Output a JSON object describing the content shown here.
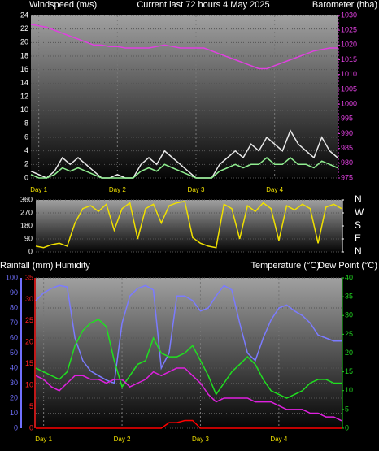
{
  "chart_data": [
    {
      "type": "line",
      "title": "Current last 72 hours 4 May 2025",
      "ylabel": "Windspeed (m/s)",
      "y2label": "Barometer (hba)",
      "categories": [
        null,
        "Day 1",
        null,
        null,
        null,
        null,
        null,
        null,
        null,
        null,
        null,
        "Day 2",
        null,
        null,
        null,
        null,
        null,
        null,
        null,
        null,
        null,
        "Day 3",
        null,
        null,
        null,
        null,
        null,
        null,
        null,
        null,
        null,
        "Day 4",
        null,
        null,
        null,
        null,
        null,
        null,
        null,
        null
      ],
      "ylim": [
        0,
        24
      ],
      "yticks": [
        0,
        2,
        4,
        6,
        8,
        10,
        12,
        14,
        16,
        18,
        20,
        22,
        24
      ],
      "ycolor": "#ffffff",
      "y2lim": [
        975,
        1030
      ],
      "y2ticks": [
        975,
        980,
        985,
        990,
        995,
        1000,
        1005,
        1010,
        1015,
        1020,
        1025,
        1030
      ],
      "y2color": "#e040e0",
      "grid": true,
      "series": [
        {
          "color": "#e8e8e8",
          "values": [
            1,
            0.5,
            0,
            1,
            3,
            2,
            3,
            2,
            1,
            0,
            0,
            0.5,
            0,
            0,
            2,
            3,
            2,
            4,
            3,
            2,
            1,
            0,
            0,
            0,
            2,
            3,
            4,
            3,
            5,
            4,
            6,
            5,
            4,
            7,
            5,
            4,
            3,
            6,
            4,
            3
          ]
        },
        {
          "color": "#90ee90",
          "values": [
            0.5,
            0,
            0,
            0.5,
            1.5,
            1,
            1.5,
            1,
            0.5,
            0,
            0,
            0,
            0,
            0,
            1,
            1.5,
            1,
            2,
            1.5,
            1,
            0.5,
            0,
            0,
            0,
            1,
            1.5,
            2,
            1.5,
            2,
            2,
            3,
            2,
            2,
            3,
            2,
            2,
            1.5,
            2.5,
            2,
            1.5
          ]
        },
        {
          "color": "#e040e0",
          "axis": "y2",
          "values": [
            1027,
            1026.5,
            1026,
            1025,
            1024,
            1023,
            1022,
            1021,
            1020,
            1020,
            1019.5,
            1019.5,
            1019,
            1019,
            1019,
            1019,
            1019.5,
            1020,
            1019.5,
            1019,
            1019,
            1019,
            1019,
            1018,
            1017,
            1016,
            1015,
            1014,
            1013,
            1012,
            1012,
            1013,
            1014,
            1015,
            1016,
            1017,
            1018,
            1018.5,
            1019,
            1019
          ]
        }
      ]
    },
    {
      "type": "line",
      "ylim": [
        0,
        360
      ],
      "yticks": [
        0,
        90,
        180,
        270,
        360
      ],
      "ycolor": "#ffffff",
      "y2lim": [
        0,
        360
      ],
      "y2ticks": [
        {
          "value": 360,
          "label": "N"
        },
        {
          "value": 270,
          "label": "W"
        },
        {
          "value": 180,
          "label": "S"
        },
        {
          "value": 90,
          "label": "E"
        },
        {
          "value": 0,
          "label": "N"
        }
      ],
      "y2color": "#ffffff",
      "grid": true,
      "series": [
        {
          "color": "#f0e000",
          "values": [
            40,
            30,
            50,
            60,
            40,
            200,
            300,
            320,
            280,
            330,
            150,
            300,
            340,
            90,
            300,
            330,
            200,
            320,
            340,
            350,
            100,
            60,
            40,
            30,
            330,
            300,
            90,
            320,
            280,
            340,
            300,
            80,
            320,
            290,
            330,
            300,
            60,
            310,
            330,
            300
          ]
        }
      ]
    },
    {
      "type": "line",
      "categories": [
        null,
        "Day 1",
        null,
        null,
        null,
        null,
        null,
        null,
        null,
        null,
        null,
        "Day 2",
        null,
        null,
        null,
        null,
        null,
        null,
        null,
        null,
        null,
        "Day 3",
        null,
        null,
        null,
        null,
        null,
        null,
        null,
        null,
        null,
        "Day 4",
        null,
        null,
        null,
        null,
        null,
        null,
        null,
        null
      ],
      "ylim": [
        0,
        100
      ],
      "yticks": [
        0,
        10,
        20,
        30,
        40,
        50,
        60,
        70,
        80,
        90,
        100
      ],
      "ycolor": "#7070ff",
      "y2lim": [
        0,
        40
      ],
      "y2ticks": [
        0,
        5,
        10,
        15,
        20,
        25,
        30,
        35,
        40
      ],
      "y2color": "#20d020",
      "y3lim": [
        0,
        35
      ],
      "y3ticks": [
        0,
        5,
        10,
        15,
        20,
        25,
        30,
        35
      ],
      "y3color": "#ff2020",
      "grid": true,
      "series": [
        {
          "name": "Rainfall (mm)",
          "color": "#ff0000",
          "axis": "y3",
          "values": [
            0,
            0,
            0,
            0,
            0,
            0,
            0,
            0,
            0,
            0,
            0,
            0,
            0,
            0,
            0,
            0,
            0,
            1.3,
            1.3,
            1.8,
            1.8,
            0,
            0,
            0,
            0,
            0,
            0,
            0,
            0,
            0,
            0,
            0,
            0,
            0,
            0,
            0,
            0,
            0,
            0,
            0
          ]
        },
        {
          "name": "Humidity",
          "color": "#7b7bff",
          "values": [
            85,
            90,
            93,
            95,
            94,
            60,
            45,
            38,
            35,
            32,
            30,
            70,
            88,
            93,
            95,
            92,
            40,
            50,
            88,
            88,
            85,
            78,
            80,
            88,
            95,
            92,
            70,
            50,
            45,
            60,
            72,
            80,
            82,
            78,
            75,
            70,
            62,
            60,
            58,
            58
          ]
        },
        {
          "name": "Temperature (°C)",
          "color": "#20e020",
          "axis": "y2",
          "values": [
            16,
            15,
            14,
            13,
            15,
            22,
            26,
            28,
            29,
            27,
            18,
            11,
            14,
            17,
            18,
            24,
            20,
            19,
            19,
            20,
            22,
            18,
            14,
            9,
            12,
            15,
            17,
            19,
            17,
            13,
            10,
            9,
            8,
            9,
            10,
            12,
            13,
            13,
            12,
            12
          ]
        },
        {
          "name": "Dew Point (°C)",
          "color": "#e020e0",
          "axis": "y2",
          "values": [
            14,
            13,
            11,
            10,
            12,
            14,
            14,
            13,
            13,
            12,
            13,
            13,
            11,
            12,
            13,
            15,
            14,
            15,
            16,
            16,
            14,
            12,
            9,
            7,
            8,
            8,
            8,
            8,
            7,
            7,
            7,
            6,
            5,
            5,
            5,
            4,
            4,
            3,
            3,
            2
          ]
        }
      ]
    }
  ]
}
